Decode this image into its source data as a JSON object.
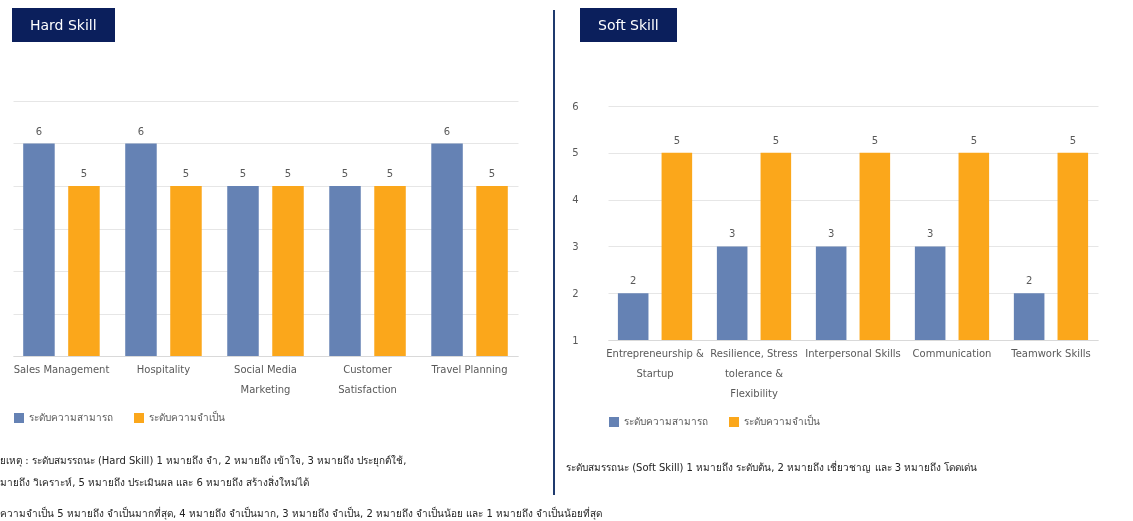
{
  "chart_data": [
    {
      "type": "bar",
      "title": "Hard Skill",
      "categories": [
        "Sales Management",
        "Hospitality",
        "Social Media Marketing",
        "Customer Satisfaction",
        "Travel Planning"
      ],
      "series": [
        {
          "name": "ระดับความสามารถ",
          "color": "#6582b4",
          "values": [
            6,
            6,
            5,
            5,
            6
          ]
        },
        {
          "name": "ระดับความจำเป็น",
          "color": "#fba71b",
          "values": [
            5,
            5,
            5,
            5,
            5
          ]
        }
      ],
      "ylim": [
        1,
        7
      ],
      "yticks": [
        {
          "value": 1,
          "label": null
        },
        {
          "value": 2,
          "label": null
        },
        {
          "value": 3,
          "label": null
        },
        {
          "value": 4,
          "label": null
        },
        {
          "value": 5,
          "label": null
        },
        {
          "value": 6,
          "label": null
        },
        {
          "value": 7,
          "label": null
        }
      ],
      "tick_labels": "x",
      "grid": "y",
      "legend": "bottom",
      "data_labels": true,
      "annotations": [
        "ยเหตุ : ระดับสมรรถนะ (Hard Skill) 1 หมายถึง จำ, 2 หมายถึง เข้าใจ, 3 หมายถึง ประยุกต์ใช้,",
        "มายถึง วิเคราะห์, 5 หมายถึง ประเมินผล และ 6 หมายถึง สร้างสิ่งใหม่ได้",
        "ความจำเป็น 5 หมายถึง จำเป็นมากที่สุด, 4 หมายถึง จำเป็นมาก, 3 หมายถึง จำเป็น, 2 หมายถึง จำเป็นน้อย และ 1 หมายถึง จำเป็นน้อยที่สุด"
      ]
    },
    {
      "type": "bar",
      "title": "Soft Skill",
      "categories": [
        "Entrepreneurship & Startup",
        "Resilience, Stress tolerance & Flexibility",
        "Interpersonal Skills",
        "Communication",
        "Teamwork Skills"
      ],
      "series": [
        {
          "name": "ระดับความสามารถ",
          "color": "#6582b4",
          "values": [
            2,
            3,
            3,
            3,
            2
          ]
        },
        {
          "name": "ระดับความจำเป็น",
          "color": "#fba71b",
          "values": [
            5,
            5,
            5,
            5,
            5
          ]
        }
      ],
      "ylim": [
        1,
        6
      ],
      "yticks": [
        1,
        2,
        3,
        4,
        5,
        6
      ],
      "grid": "y",
      "legend": "bottom",
      "data_labels": true,
      "annotations": [
        "ระดับสมรรถนะ (Soft Skill) 1 หมายถึง ระดับต้น, 2 หมายถึง เชี่ยวชาญ และ 3 หมายถึง โดดเด่น"
      ]
    }
  ]
}
